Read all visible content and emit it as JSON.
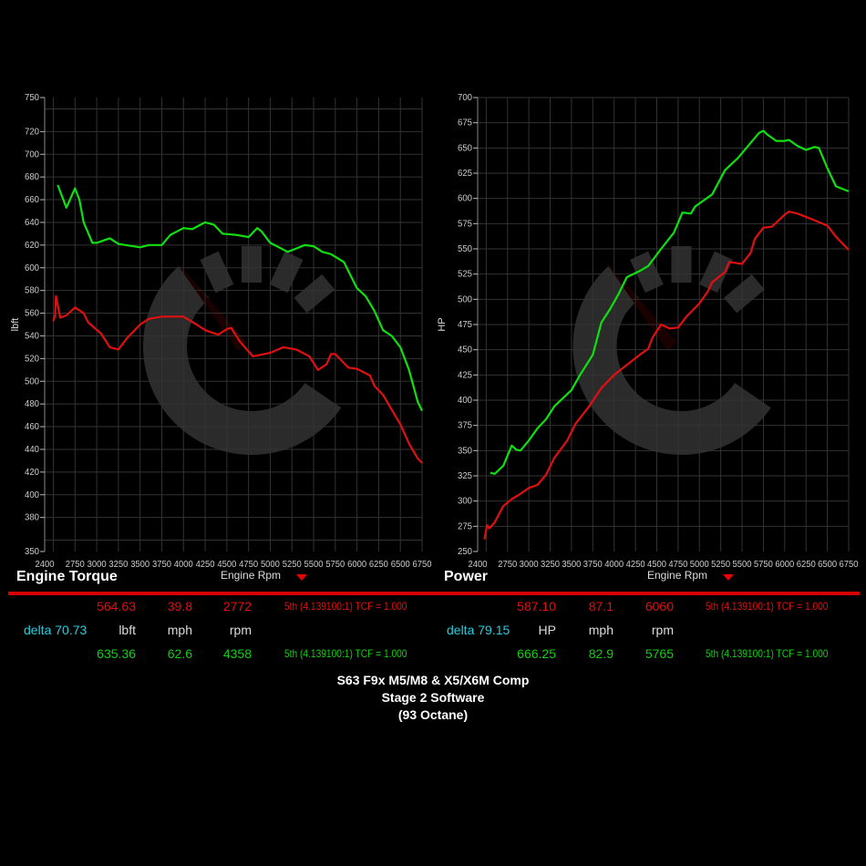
{
  "colors": {
    "baseline": "#e01010",
    "tuned": "#10e010",
    "delta": "#20d0e0",
    "divider": "#d40000"
  },
  "chart_data": [
    {
      "type": "line",
      "title": "Engine Torque",
      "xlabel": "Engine Rpm",
      "ylabel": "lbft",
      "xlim": [
        2400,
        6750
      ],
      "ylim": [
        350,
        750
      ],
      "xticks": [
        2400,
        2750,
        3000,
        3250,
        3500,
        3750,
        4000,
        4250,
        4500,
        4750,
        5000,
        5250,
        5500,
        5750,
        6000,
        6250,
        6500,
        6750
      ],
      "yticks": [
        350,
        380,
        400,
        420,
        440,
        460,
        480,
        500,
        520,
        540,
        560,
        580,
        600,
        620,
        640,
        660,
        680,
        700,
        720,
        750
      ],
      "grid": true,
      "series": [
        {
          "color": "#e01010",
          "x": [
            2500,
            2520,
            2530,
            2580,
            2650,
            2750,
            2850,
            2900,
            3050,
            3150,
            3250,
            3350,
            3500,
            3600,
            3750,
            3900,
            4000,
            4150,
            4250,
            4400,
            4500,
            4550,
            4650,
            4800,
            5000,
            5150,
            5300,
            5450,
            5550,
            5650,
            5700,
            5750,
            5900,
            6000,
            6150,
            6200,
            6300,
            6400,
            6500,
            6600,
            6700,
            6750
          ],
          "y": [
            553,
            558,
            575,
            556,
            558,
            565,
            560,
            552,
            542,
            530,
            528,
            538,
            550,
            555,
            557,
            557,
            557,
            550,
            545,
            541,
            546,
            547,
            535,
            522,
            525,
            530,
            528,
            522,
            510,
            515,
            524,
            524,
            512,
            511,
            505,
            496,
            488,
            475,
            462,
            445,
            432,
            428
          ]
        },
        {
          "color": "#10e010",
          "x": [
            2550,
            2650,
            2750,
            2800,
            2850,
            2950,
            3000,
            3150,
            3250,
            3500,
            3600,
            3750,
            3850,
            4000,
            4100,
            4250,
            4350,
            4450,
            4600,
            4750,
            4850,
            4900,
            5000,
            5100,
            5200,
            5300,
            5400,
            5500,
            5600,
            5700,
            5850,
            6000,
            6100,
            6200,
            6300,
            6400,
            6500,
            6600,
            6700,
            6750
          ],
          "y": [
            673,
            653,
            670,
            660,
            640,
            622,
            622,
            626,
            621,
            618,
            620,
            620,
            629,
            635,
            634,
            640,
            638,
            630,
            629,
            627,
            635,
            632,
            622,
            618,
            614,
            617,
            620,
            619,
            614,
            612,
            605,
            582,
            575,
            562,
            545,
            540,
            530,
            510,
            482,
            474
          ]
        }
      ]
    },
    {
      "type": "line",
      "title": "Power",
      "xlabel": "Engine Rpm",
      "ylabel": "HP",
      "xlim": [
        2400,
        6750
      ],
      "ylim": [
        250,
        700
      ],
      "xticks": [
        2400,
        2750,
        3000,
        3250,
        3500,
        3750,
        4000,
        4250,
        4500,
        4750,
        5000,
        5250,
        5500,
        5750,
        6000,
        6250,
        6500,
        6750
      ],
      "yticks": [
        250,
        275,
        300,
        325,
        350,
        375,
        400,
        425,
        450,
        475,
        500,
        525,
        550,
        575,
        600,
        625,
        650,
        675,
        700
      ],
      "grid": true,
      "series": [
        {
          "color": "#e01010",
          "x": [
            2480,
            2510,
            2540,
            2600,
            2700,
            2800,
            2900,
            3000,
            3100,
            3200,
            3300,
            3450,
            3550,
            3700,
            3850,
            4000,
            4150,
            4300,
            4400,
            4450,
            4550,
            4650,
            4750,
            4850,
            5000,
            5100,
            5150,
            5300,
            5350,
            5500,
            5600,
            5650,
            5750,
            5850,
            6000,
            6050,
            6150,
            6300,
            6500,
            6600,
            6750
          ],
          "y": [
            262,
            276,
            273,
            279,
            295,
            302,
            307,
            313,
            316,
            326,
            343,
            360,
            377,
            393,
            412,
            425,
            435,
            445,
            451,
            462,
            475,
            471,
            472,
            483,
            496,
            508,
            517,
            527,
            537,
            535,
            546,
            560,
            571,
            572,
            584,
            587,
            585,
            580,
            573,
            562,
            549
          ]
        },
        {
          "color": "#10e010",
          "x": [
            2550,
            2600,
            2700,
            2800,
            2850,
            2900,
            3000,
            3100,
            3200,
            3300,
            3500,
            3600,
            3750,
            3850,
            3950,
            4050,
            4150,
            4300,
            4400,
            4550,
            4700,
            4800,
            4900,
            4950,
            5150,
            5300,
            5450,
            5600,
            5700,
            5750,
            5800,
            5900,
            6000,
            6050,
            6150,
            6250,
            6350,
            6400,
            6500,
            6600,
            6750
          ],
          "y": [
            328,
            327,
            335,
            355,
            351,
            350,
            360,
            372,
            381,
            394,
            410,
            425,
            445,
            477,
            490,
            505,
            522,
            528,
            533,
            550,
            566,
            586,
            585,
            592,
            604,
            628,
            640,
            655,
            665,
            667,
            663,
            657,
            657,
            658,
            652,
            648,
            651,
            650,
            630,
            612,
            607
          ]
        }
      ]
    }
  ],
  "torque_panel": {
    "baseline": {
      "value": "564.63",
      "speed": "39.8",
      "rpm": "2772",
      "gear": "5th (4.139100:1) TCF = 1.000"
    },
    "units": {
      "delta": "delta 70.73",
      "value": "lbft",
      "speed": "mph",
      "rpm": "rpm"
    },
    "tuned": {
      "value": "635.36",
      "speed": "62.6",
      "rpm": "4358",
      "gear": "5th (4.139100:1) TCF = 1.000"
    }
  },
  "power_panel": {
    "baseline": {
      "value": "587.10",
      "speed": "87.1",
      "rpm": "6060",
      "gear": "5th (4.139100:1) TCF = 1.000"
    },
    "units": {
      "delta": "delta 79.15",
      "value": "HP",
      "speed": "mph",
      "rpm": "rpm"
    },
    "tuned": {
      "value": "666.25",
      "speed": "82.9",
      "rpm": "5765",
      "gear": "5th (4.139100:1) TCF = 1.000"
    }
  },
  "footer": {
    "line1": "S63 F9x M5/M8 & X5/X6M Comp",
    "line2": "Stage 2 Software",
    "line3": "(93 Octane)"
  },
  "watermark_icon": "gauge-c-logo-icon"
}
